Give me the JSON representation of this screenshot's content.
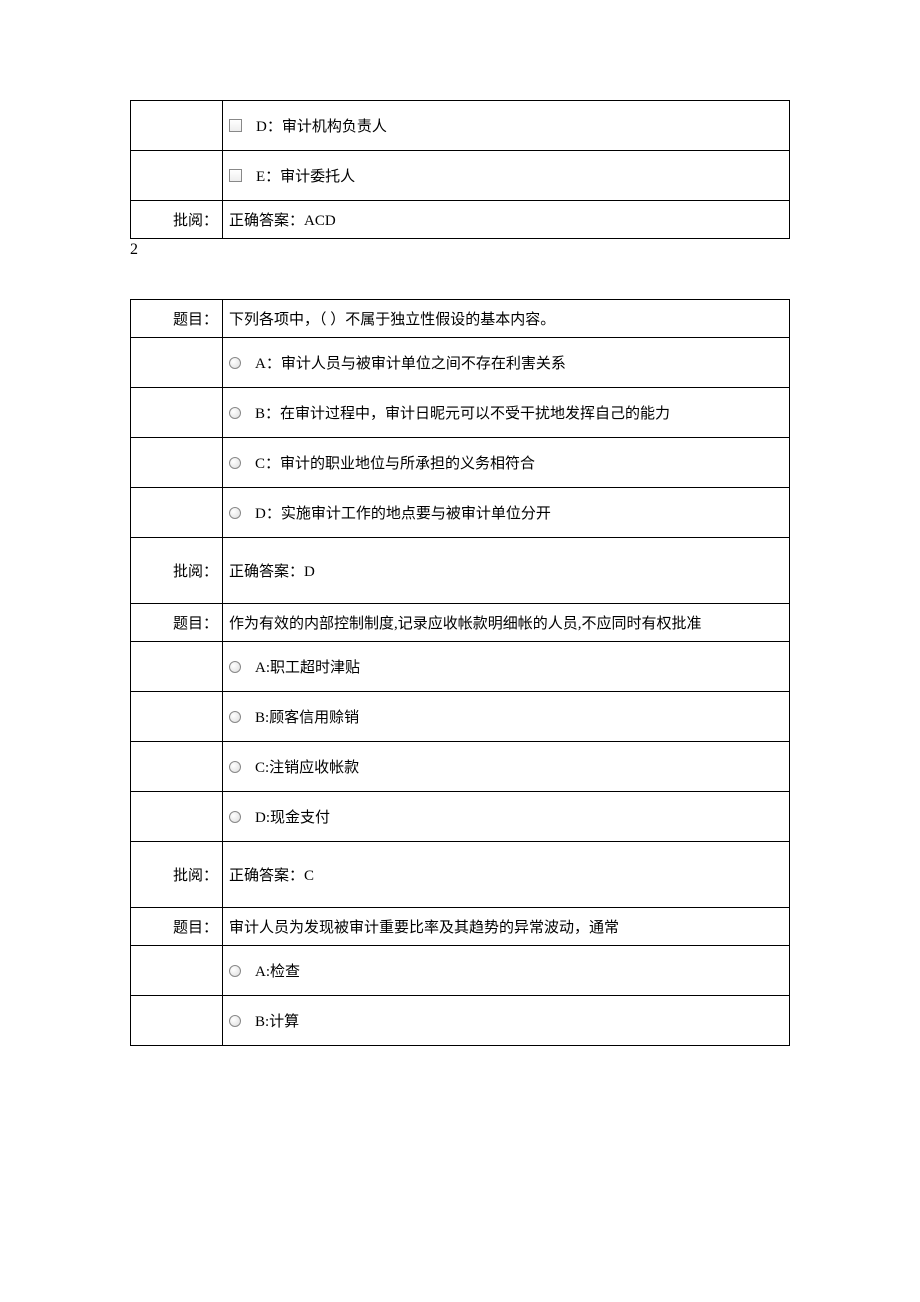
{
  "table1": {
    "option_d": "D：审计机构负责人",
    "option_e": "E：审计委托人",
    "review_label": "批阅：",
    "answer": "正确答案：ACD"
  },
  "section_number": "2",
  "table2": {
    "q1": {
      "title_label": "题目：",
      "title": "下列各项中，（ ）不属于独立性假设的基本内容。",
      "option_a": "A：审计人员与被审计单位之间不存在利害关系",
      "option_b": "B：在审计过程中，审计日昵元可以不受干扰地发挥自己的能力",
      "option_c": "C：审计的职业地位与所承担的义务相符合",
      "option_d": "D：实施审计工作的地点要与被审计单位分开",
      "review_label": "批阅：",
      "answer": "正确答案：D"
    },
    "q2": {
      "title_label": "题目：",
      "title": "作为有效的内部控制制度,记录应收帐款明细帐的人员,不应同时有权批准",
      "option_a": "A:职工超时津贴",
      "option_b": "B:顾客信用赊销",
      "option_c": "C:注销应收帐款",
      "option_d": "D:现金支付",
      "review_label": "批阅：",
      "answer": "正确答案：C"
    },
    "q3": {
      "title_label": "题目：",
      "title": "审计人员为发现被审计重要比率及其趋势的异常波动，通常",
      "option_a": "A:检查",
      "option_b": "B:计算"
    }
  }
}
